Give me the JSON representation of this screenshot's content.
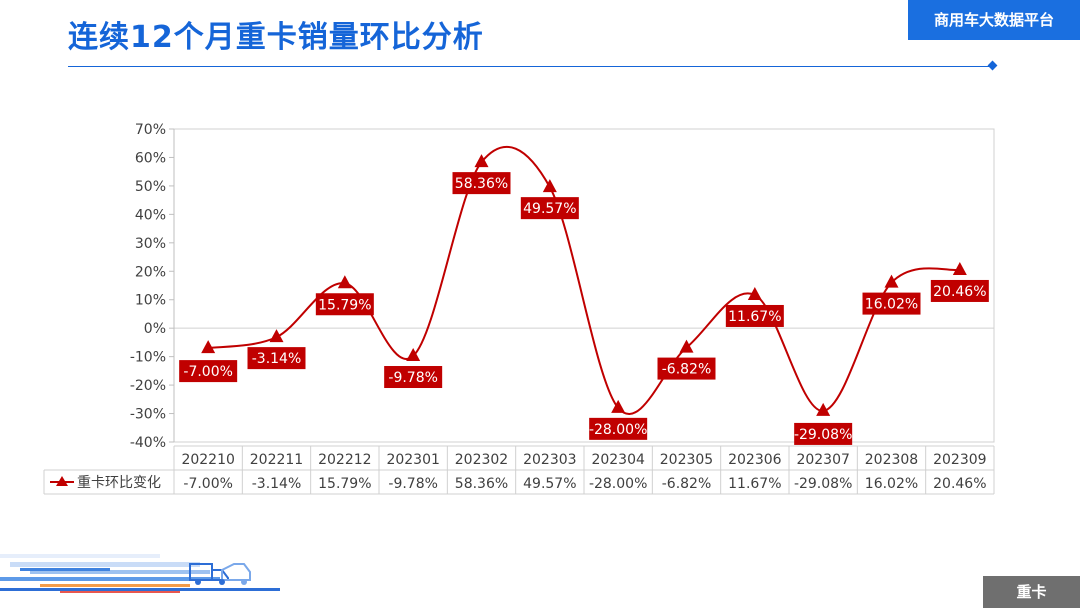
{
  "header": {
    "title": "连续12个月重卡销量环比分析",
    "platform_badge": "商用车大数据平台"
  },
  "footer": {
    "category_badge": "重卡"
  },
  "colors": {
    "title_blue": "#1565d8",
    "badge_blue": "#1a6fe0",
    "series_red": "#c00000",
    "category_gray": "#6f6f6f"
  },
  "chart_data": {
    "type": "line",
    "title": "",
    "xlabel": "",
    "ylabel": "",
    "categories": [
      "202210",
      "202211",
      "202212",
      "202301",
      "202302",
      "202303",
      "202304",
      "202305",
      "202306",
      "202307",
      "202308",
      "202309"
    ],
    "series": [
      {
        "name": "重卡环比变化",
        "values": [
          -7.0,
          -3.14,
          15.79,
          -9.78,
          58.36,
          49.57,
          -28.0,
          -6.82,
          11.67,
          -29.08,
          16.02,
          20.46
        ],
        "labels": [
          "-7.00%",
          "-3.14%",
          "15.79%",
          "-9.78%",
          "58.36%",
          "49.57%",
          "-28.00%",
          "-6.82%",
          "11.67%",
          "-29.08%",
          "16.02%",
          "20.46%"
        ],
        "marker": "triangle",
        "smooth": true
      }
    ],
    "ylim": [
      -40,
      70
    ],
    "y_ticks": [
      70,
      60,
      50,
      40,
      30,
      20,
      10,
      0,
      -10,
      -20,
      -30,
      -40
    ],
    "y_tick_labels": [
      "70%",
      "60%",
      "50%",
      "40%",
      "30%",
      "20%",
      "10%",
      "0%",
      "-10%",
      "-20%",
      "-30%",
      "-40%"
    ],
    "data_table": true,
    "grid": false,
    "legend": "in data table"
  }
}
